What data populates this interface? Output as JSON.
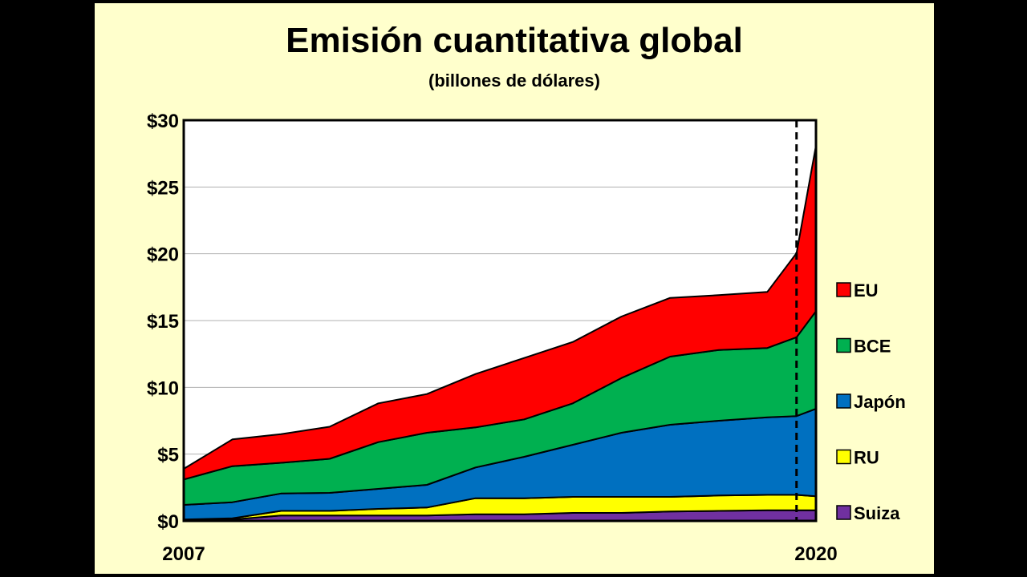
{
  "chart_data": {
    "type": "area",
    "title": "Emisión cuantitativa global",
    "subtitle": "(billones de dólares)",
    "xlabel": "",
    "ylabel": "",
    "x_tick_labels": [
      "2007",
      "2020"
    ],
    "y_tick_labels": [
      "$0",
      "$5",
      "$10",
      "$15",
      "$20",
      "$25",
      "$30"
    ],
    "ylim": [
      0,
      30
    ],
    "x": [
      2007,
      2008,
      2009,
      2010,
      2011,
      2012,
      2013,
      2014,
      2015,
      2016,
      2017,
      2018,
      2019,
      2019.6,
      2020
    ],
    "stacked": true,
    "grid": "horizontal",
    "legend_position": "right",
    "marker_line": {
      "x": 2019.6,
      "style": "dashed"
    },
    "series": [
      {
        "name": "Suiza",
        "color": "#7030a0",
        "values": [
          0.1,
          0.1,
          0.4,
          0.4,
          0.4,
          0.4,
          0.5,
          0.5,
          0.6,
          0.6,
          0.7,
          0.75,
          0.8,
          0.8,
          0.8
        ]
      },
      {
        "name": "RU",
        "color": "#ffff00",
        "values": [
          0.0,
          0.1,
          0.35,
          0.35,
          0.5,
          0.6,
          1.2,
          1.2,
          1.2,
          1.2,
          1.1,
          1.15,
          1.15,
          1.15,
          1.05
        ]
      },
      {
        "name": "Japón",
        "color": "#0070c0",
        "values": [
          1.1,
          1.2,
          1.3,
          1.35,
          1.5,
          1.7,
          2.3,
          3.1,
          3.9,
          4.8,
          5.4,
          5.6,
          5.8,
          5.9,
          6.55
        ]
      },
      {
        "name": "BCE",
        "color": "#00b050",
        "values": [
          1.9,
          2.7,
          2.3,
          2.55,
          3.5,
          3.9,
          3.0,
          2.8,
          3.1,
          4.1,
          5.1,
          5.3,
          5.2,
          5.9,
          7.3
        ]
      },
      {
        "name": "EU",
        "color": "#ff0000",
        "values": [
          0.8,
          2.0,
          2.15,
          2.4,
          2.9,
          2.9,
          4.0,
          4.6,
          4.6,
          4.6,
          4.4,
          4.1,
          4.2,
          6.3,
          12.4
        ]
      }
    ]
  }
}
